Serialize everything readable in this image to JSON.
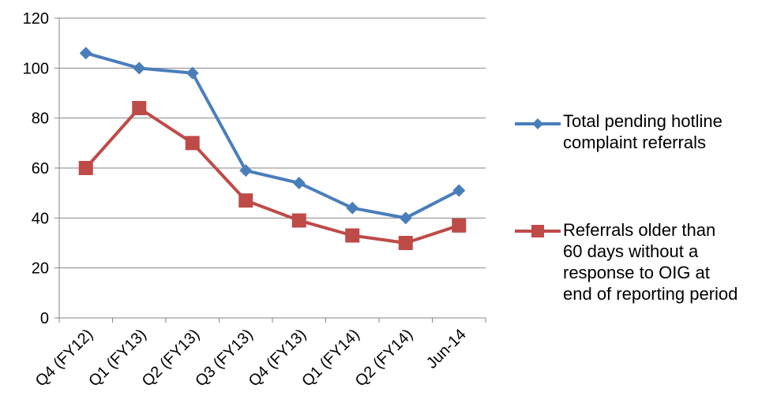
{
  "chart_data": {
    "type": "line",
    "categories": [
      "Q4 (FY12)",
      "Q1 (FY13)",
      "Q2 (FY13)",
      "Q3 (FY13)",
      "Q4 (FY13)",
      "Q1 (FY14)",
      "Q2 (FY14)",
      "Jun-14"
    ],
    "series": [
      {
        "name": "Total pending hotline complaint referrals",
        "values": [
          106,
          100,
          98,
          59,
          54,
          44,
          40,
          51
        ],
        "color": "#4A7EBB",
        "marker": "diamond"
      },
      {
        "name": "Referrals older than 60 days without a response to OIG at end of reporting period",
        "values": [
          60,
          84,
          70,
          47,
          39,
          33,
          30,
          37
        ],
        "color": "#BE4B48",
        "marker": "square"
      }
    ],
    "yticks": [
      "0",
      "20",
      "40",
      "60",
      "80",
      "100",
      "120"
    ],
    "ylim": [
      0,
      120
    ],
    "grid": true,
    "legend_position": "right",
    "title": "",
    "xlabel": "",
    "ylabel": ""
  },
  "legend": {
    "items": [
      {
        "label": "Total pending hotline\ncomplaint referrals",
        "marker_icon": "diamond-icon"
      },
      {
        "label": "Referrals older than\n60 days without a\nresponse to OIG at\nend of reporting period",
        "marker_icon": "square-icon"
      }
    ]
  }
}
